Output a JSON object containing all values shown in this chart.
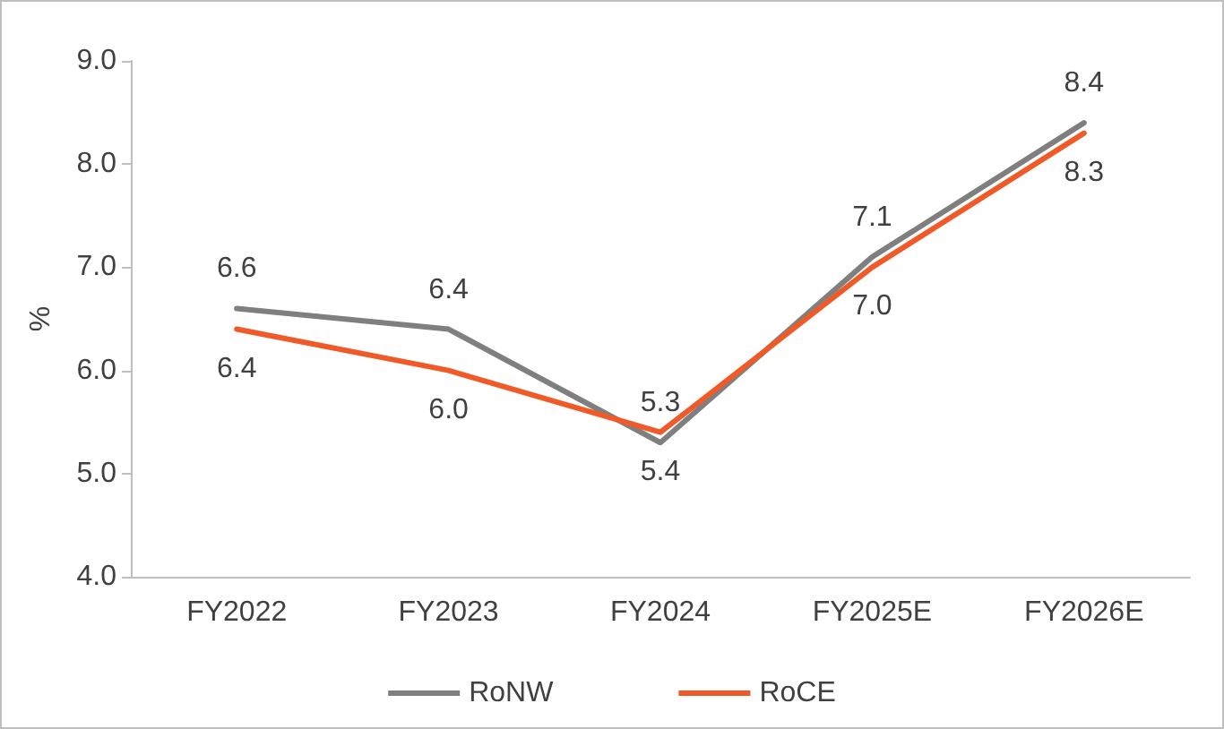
{
  "chart_data": {
    "type": "line",
    "ylabel": "%",
    "categories": [
      "FY2022",
      "FY2023",
      "FY2024",
      "FY2025E",
      "FY2026E"
    ],
    "series": [
      {
        "name": "RoNW",
        "color": "#7f7f7f",
        "values": [
          6.6,
          6.4,
          5.3,
          7.1,
          8.4
        ],
        "value_labels": [
          "6.6",
          "6.4",
          "5.3",
          "7.1",
          "8.4"
        ]
      },
      {
        "name": "RoCE",
        "color": "#f05a28",
        "values": [
          6.4,
          6.0,
          5.4,
          7.0,
          8.3
        ],
        "value_labels": [
          "6.4",
          "6.0",
          "5.4",
          "7.0",
          "8.3"
        ]
      }
    ],
    "ylim": [
      4,
      9
    ],
    "yticks": [
      {
        "value": 4,
        "label": "4.0"
      },
      {
        "value": 5,
        "label": "5.0"
      },
      {
        "value": 6,
        "label": "6.0"
      },
      {
        "value": 7,
        "label": "7.0"
      },
      {
        "value": 8,
        "label": "8.0"
      },
      {
        "value": 9,
        "label": "9.0"
      }
    ],
    "grid": false,
    "legend": "bottom",
    "marker": "none",
    "line_style": "solid"
  }
}
